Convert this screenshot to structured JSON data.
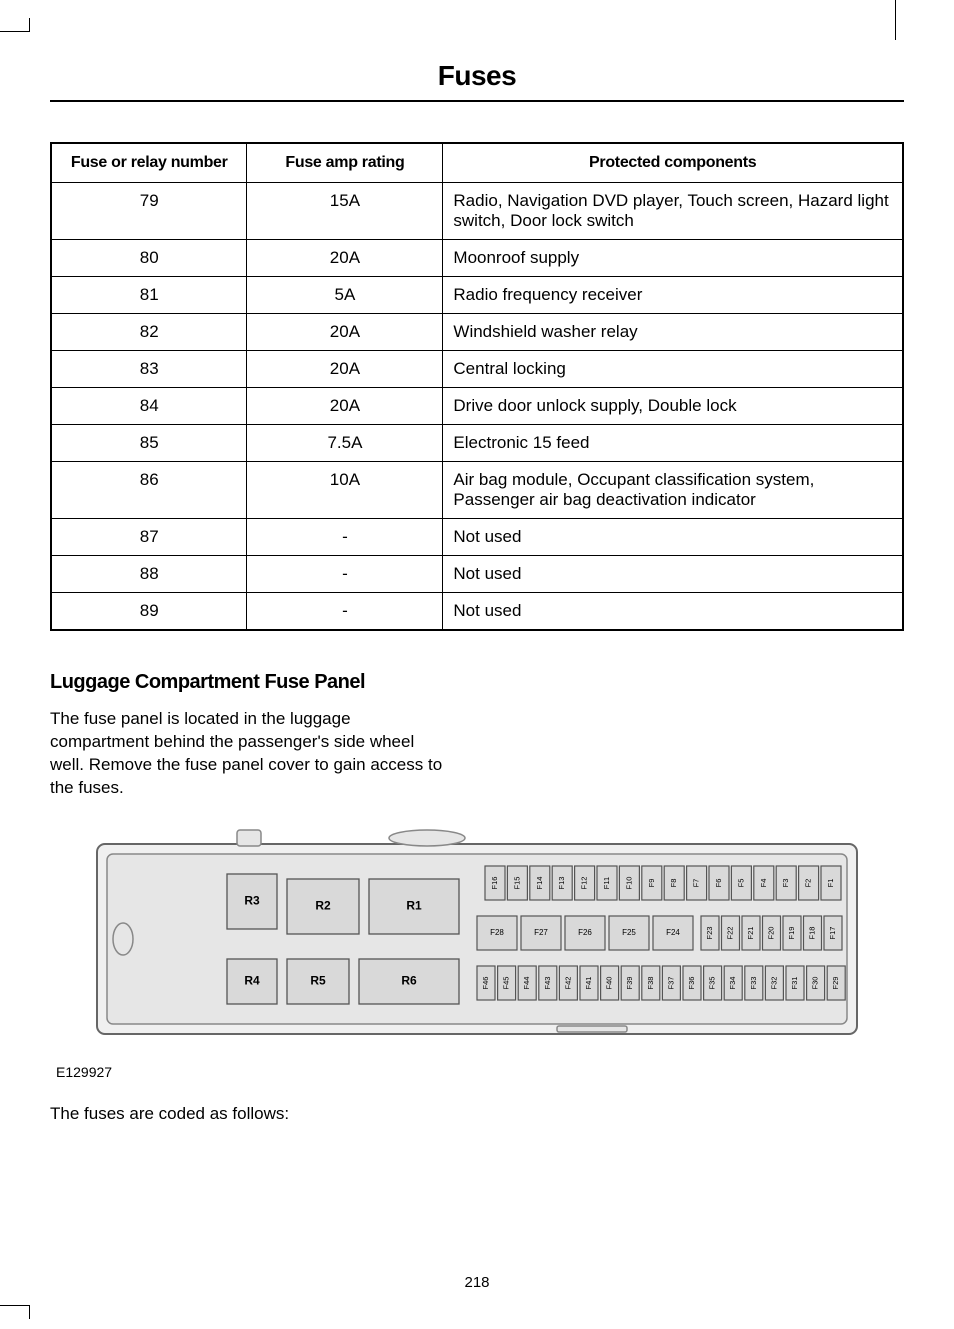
{
  "page": {
    "title": "Fuses",
    "number": "218"
  },
  "fuse_table": {
    "columns": [
      "Fuse or relay number",
      "Fuse amp rating",
      "Protected components"
    ],
    "rows": [
      {
        "num": "79",
        "amp": "15A",
        "prot": "Radio, Navigation DVD player, Touch screen, Hazard light switch, Door lock switch"
      },
      {
        "num": "80",
        "amp": "20A",
        "prot": "Moonroof supply"
      },
      {
        "num": "81",
        "amp": "5A",
        "prot": "Radio frequency receiver"
      },
      {
        "num": "82",
        "amp": "20A",
        "prot": "Windshield washer relay"
      },
      {
        "num": "83",
        "amp": "20A",
        "prot": "Central locking"
      },
      {
        "num": "84",
        "amp": "20A",
        "prot": "Drive door unlock supply, Double lock"
      },
      {
        "num": "85",
        "amp": "7.5A",
        "prot": "Electronic 15 feed"
      },
      {
        "num": "86",
        "amp": "10A",
        "prot": "Air bag module, Occupant classification system, Passenger air bag deactivation indicator"
      },
      {
        "num": "87",
        "amp": "-",
        "prot": "Not used"
      },
      {
        "num": "88",
        "amp": "-",
        "prot": "Not used"
      },
      {
        "num": "89",
        "amp": "-",
        "prot": "Not used"
      }
    ]
  },
  "section": {
    "heading": "Luggage Compartment Fuse Panel",
    "body": "The fuse panel is located in the luggage compartment behind the passenger's side wheel well. Remove the fuse panel cover to gain access to the fuses.",
    "body2": "The fuses are coded as follows:"
  },
  "diagram": {
    "caption": "E129927",
    "relays": [
      "R1",
      "R2",
      "R3",
      "R4",
      "R5",
      "R6"
    ],
    "top_row_fuses": [
      "F16",
      "F15",
      "F14",
      "F13",
      "F12",
      "F11",
      "F10",
      "F9",
      "F8",
      "F7",
      "F6",
      "F5",
      "F4",
      "F3",
      "F2",
      "F1"
    ],
    "mid_big_fuses": [
      "F28",
      "F27",
      "F26",
      "F25",
      "F24"
    ],
    "mid_small_fuses": [
      "F23",
      "F22",
      "F21",
      "F20",
      "F19",
      "F18",
      "F17"
    ],
    "bottom_row_fuses": [
      "F46",
      "F45",
      "F44",
      "F43",
      "F42",
      "F41",
      "F40",
      "F39",
      "F38",
      "F37",
      "F36",
      "F35",
      "F34",
      "F33",
      "F32",
      "F31",
      "F30",
      "F29"
    ],
    "colors": {
      "panel_outer": "#f0f0f0",
      "panel_inner": "#e6e6e6",
      "box_fill": "#d9d9d9",
      "stroke": "#555555"
    }
  }
}
